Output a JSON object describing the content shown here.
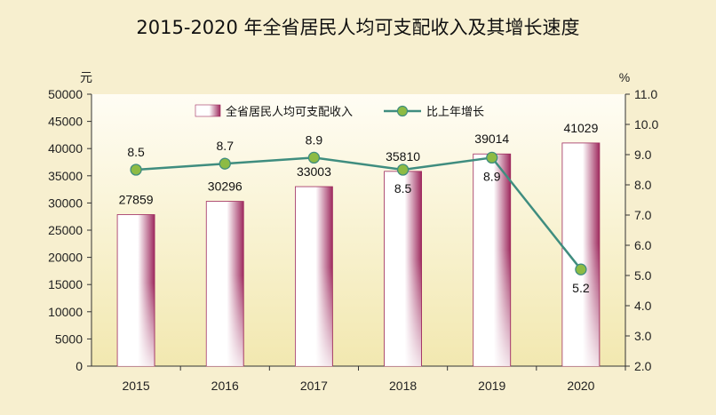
{
  "title": "2015-2020 年全省居民人均可支配收入及其增长速度",
  "colors": {
    "bar_dark": "#9e2a5e",
    "bar_light": "#ffffff",
    "line": "#3f8d7f",
    "marker": "#8dbb44",
    "plot_bg_top": "#fffdf4",
    "plot_bg_bottom": "#f2e8b0"
  },
  "chart_data": {
    "type": "bar+line",
    "categories": [
      "2015",
      "2016",
      "2017",
      "2018",
      "2019",
      "2020"
    ],
    "series": [
      {
        "name": "全省居民人均可支配收入",
        "type": "bar",
        "axis": "left",
        "values": [
          27859,
          30296,
          33003,
          35810,
          39014,
          41029
        ],
        "labels": [
          "27859",
          "30296",
          "33003",
          "35810",
          "39014",
          "41029"
        ]
      },
      {
        "name": "比上年增长",
        "type": "line",
        "axis": "right",
        "values": [
          8.5,
          8.7,
          8.9,
          8.5,
          8.9,
          5.2
        ],
        "labels": [
          "8.5",
          "8.7",
          "8.9",
          "8.5",
          "8.9",
          "5.2"
        ]
      }
    ],
    "left_axis": {
      "unit": "元",
      "range": [
        0,
        50000
      ],
      "ticks": [
        "0",
        "5000",
        "10000",
        "15000",
        "20000",
        "25000",
        "30000",
        "35000",
        "40000",
        "45000",
        "50000"
      ]
    },
    "right_axis": {
      "unit": "%",
      "range": [
        2.0,
        11.0
      ],
      "ticks": [
        "2.0",
        "3.0",
        "4.0",
        "5.0",
        "6.0",
        "7.0",
        "8.0",
        "9.0",
        "10.0",
        "11.0"
      ]
    },
    "legend_position": "top-center",
    "grid": false
  }
}
